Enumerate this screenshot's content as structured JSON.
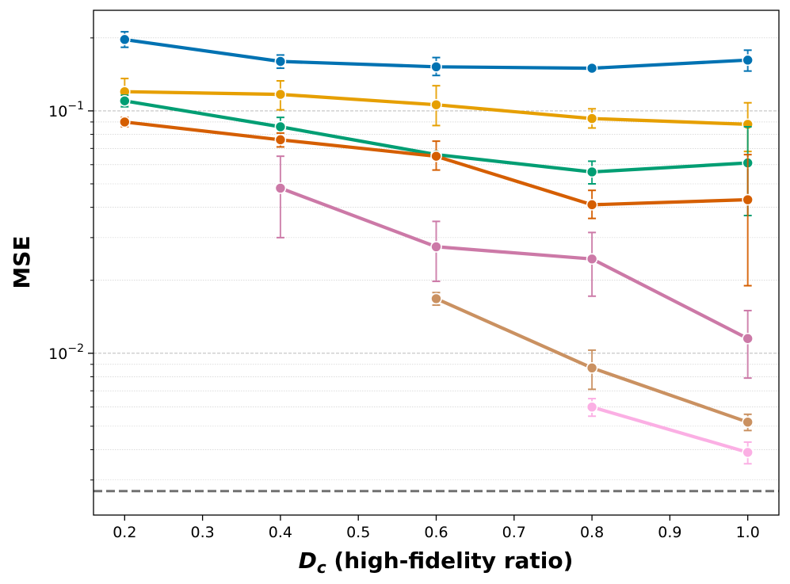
{
  "chart_data": {
    "type": "line",
    "title": "",
    "xlabel": {
      "symbol": "D",
      "subscript": "c",
      "rest": " (high-fidelity ratio)"
    },
    "ylabel": "MSE",
    "yscale": "log",
    "xlim": [
      0.16,
      1.04
    ],
    "ylim": [
      0.00215,
      0.26
    ],
    "x_ticks": [
      0.2,
      0.3,
      0.4,
      0.5,
      0.6,
      0.7,
      0.8,
      0.9,
      1.0
    ],
    "x_tick_labels": [
      "0.2",
      "0.3",
      "0.4",
      "0.5",
      "0.6",
      "0.7",
      "0.8",
      "0.9",
      "1.0"
    ],
    "y_major_ticks": [
      {
        "value": 0.1,
        "base": "10",
        "exponent": "−1"
      },
      {
        "value": 0.01,
        "base": "10",
        "exponent": "−2"
      }
    ],
    "y_minor_ticks": [
      0.003,
      0.004,
      0.005,
      0.006,
      0.007,
      0.008,
      0.009,
      0.02,
      0.03,
      0.04,
      0.05,
      0.06,
      0.07,
      0.08,
      0.09,
      0.2
    ],
    "grid": true,
    "reference_line": {
      "value": 0.0027,
      "color": "#707070",
      "style": "dashed"
    },
    "series": [
      {
        "name": "series-1",
        "color": "#0072b2",
        "points": [
          {
            "x": 0.2,
            "y": 0.197,
            "lo": 0.183,
            "hi": 0.212
          },
          {
            "x": 0.4,
            "y": 0.16,
            "lo": 0.15,
            "hi": 0.17
          },
          {
            "x": 0.6,
            "y": 0.152,
            "lo": 0.14,
            "hi": 0.166
          },
          {
            "x": 0.8,
            "y": 0.15,
            "lo": 0.148,
            "hi": 0.152
          },
          {
            "x": 1.0,
            "y": 0.162,
            "lo": 0.146,
            "hi": 0.178
          }
        ]
      },
      {
        "name": "series-2",
        "color": "#e69f00",
        "points": [
          {
            "x": 0.2,
            "y": 0.12,
            "lo": 0.106,
            "hi": 0.136
          },
          {
            "x": 0.4,
            "y": 0.117,
            "lo": 0.101,
            "hi": 0.133
          },
          {
            "x": 0.6,
            "y": 0.106,
            "lo": 0.087,
            "hi": 0.127
          },
          {
            "x": 0.8,
            "y": 0.093,
            "lo": 0.085,
            "hi": 0.102
          },
          {
            "x": 1.0,
            "y": 0.088,
            "lo": 0.068,
            "hi": 0.108
          }
        ]
      },
      {
        "name": "series-3",
        "color": "#009e73",
        "points": [
          {
            "x": 0.2,
            "y": 0.11,
            "lo": 0.104,
            "hi": 0.116
          },
          {
            "x": 0.4,
            "y": 0.086,
            "lo": 0.078,
            "hi": 0.094
          },
          {
            "x": 0.6,
            "y": 0.066
          },
          {
            "x": 0.8,
            "y": 0.056,
            "lo": 0.05,
            "hi": 0.062
          },
          {
            "x": 1.0,
            "y": 0.061,
            "lo": 0.037,
            "hi": 0.086
          }
        ]
      },
      {
        "name": "series-4",
        "color": "#d55e00",
        "points": [
          {
            "x": 0.2,
            "y": 0.09,
            "lo": 0.086,
            "hi": 0.094
          },
          {
            "x": 0.4,
            "y": 0.076,
            "lo": 0.071,
            "hi": 0.081
          },
          {
            "x": 0.6,
            "y": 0.065,
            "lo": 0.057,
            "hi": 0.075
          },
          {
            "x": 0.8,
            "y": 0.041,
            "lo": 0.036,
            "hi": 0.047
          },
          {
            "x": 1.0,
            "y": 0.043,
            "lo": 0.019,
            "hi": 0.066
          }
        ]
      },
      {
        "name": "series-5",
        "color": "#cc79a7",
        "points": [
          {
            "x": 0.4,
            "y": 0.048,
            "lo": 0.03,
            "hi": 0.065
          },
          {
            "x": 0.6,
            "y": 0.0275,
            "lo": 0.0198,
            "hi": 0.035
          },
          {
            "x": 0.8,
            "y": 0.0245,
            "lo": 0.0172,
            "hi": 0.0315
          },
          {
            "x": 1.0,
            "y": 0.0115,
            "lo": 0.0079,
            "hi": 0.015
          }
        ]
      },
      {
        "name": "series-6",
        "color": "#ca9161",
        "points": [
          {
            "x": 0.6,
            "y": 0.0168,
            "lo": 0.0158,
            "hi": 0.0178
          },
          {
            "x": 0.8,
            "y": 0.0087,
            "lo": 0.0071,
            "hi": 0.0103
          },
          {
            "x": 1.0,
            "y": 0.0052,
            "lo": 0.0048,
            "hi": 0.0056
          }
        ]
      },
      {
        "name": "series-7",
        "color": "#fbafe4",
        "points": [
          {
            "x": 0.8,
            "y": 0.006,
            "lo": 0.0055,
            "hi": 0.0065
          },
          {
            "x": 1.0,
            "y": 0.0039,
            "lo": 0.0035,
            "hi": 0.0043
          }
        ]
      }
    ]
  }
}
